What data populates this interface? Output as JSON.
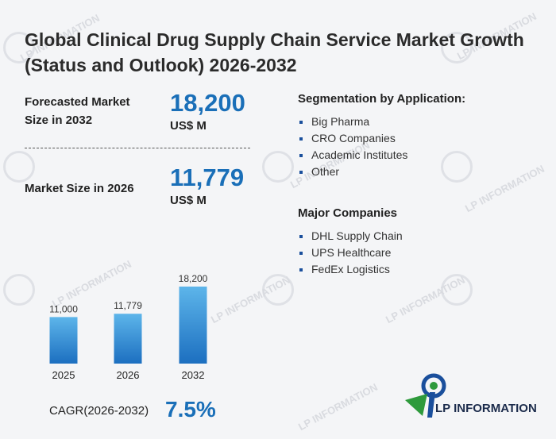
{
  "title": "Global Clinical Drug Supply Chain Service Market Growth (Status and Outlook) 2026-2032",
  "forecast": {
    "label": "Forecasted Market Size in 2032",
    "value": "18,200",
    "unit": "US$ M"
  },
  "current": {
    "label": "Market Size in 2026",
    "value": "11,779",
    "unit": "US$ M"
  },
  "segmentation": {
    "heading": "Segmentation by Application:",
    "items": [
      "Big Pharma",
      "CRO Companies",
      "Academic Institutes",
      "Other"
    ]
  },
  "companies": {
    "heading": "Major Companies",
    "items": [
      "DHL Supply Chain",
      "UPS Healthcare",
      "FedEx Logistics"
    ]
  },
  "cagr": {
    "label": "CAGR(2026-2032)",
    "value": "7.5%"
  },
  "logo": {
    "text": "LP INFORMATION"
  },
  "watermark": "LP INFORMATION",
  "colors": {
    "accent": "#1a6fb8",
    "bar_top": "#5db5ea",
    "bar_bottom": "#1c6fc0",
    "logo_green": "#2e9a3c",
    "logo_blue": "#1a4f9c"
  },
  "chart_data": {
    "type": "bar",
    "categories": [
      "2025",
      "2026",
      "2032"
    ],
    "values": [
      11000,
      11779,
      18200
    ],
    "value_labels": [
      "11,000",
      "11,779",
      "18,200"
    ],
    "title": "",
    "xlabel": "",
    "ylabel": "",
    "ylim": [
      0,
      18200
    ]
  }
}
